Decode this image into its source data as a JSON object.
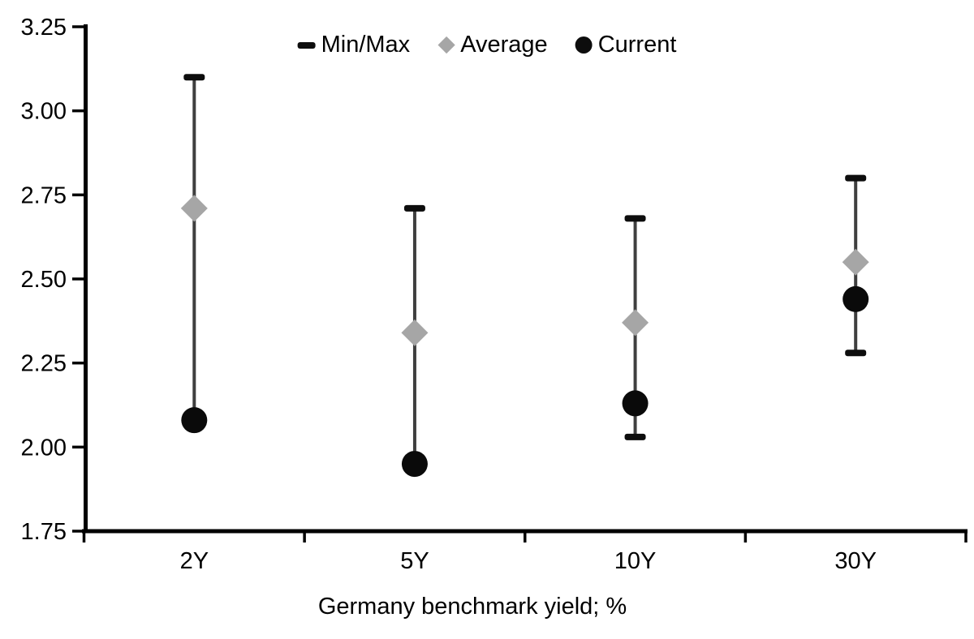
{
  "chart_data": {
    "type": "scatter",
    "title": "",
    "xlabel": "Germany benchmark yield; %",
    "ylabel": "",
    "categories": [
      "2Y",
      "5Y",
      "10Y",
      "30Y"
    ],
    "series": [
      {
        "name": "Min/Max",
        "marker": "cap-bar",
        "max": [
          3.1,
          2.71,
          2.68,
          2.8
        ],
        "min": [
          2.08,
          1.95,
          2.03,
          2.28
        ]
      },
      {
        "name": "Average",
        "marker": "diamond",
        "values": [
          2.71,
          2.34,
          2.37,
          2.55
        ]
      },
      {
        "name": "Current",
        "marker": "circle",
        "values": [
          2.08,
          1.95,
          2.13,
          2.44
        ]
      }
    ],
    "ylim": [
      1.75,
      3.25
    ],
    "ytick_step": 0.25,
    "yticks": [
      "3.25",
      "3.00",
      "2.75",
      "2.50",
      "2.25",
      "2.00",
      "1.75"
    ],
    "grid": false,
    "legend_position": "top-center",
    "colors": {
      "minmax_cap": "#0d0d0d",
      "whisker": "#3f3f3f",
      "average": "#a6a6a6",
      "current": "#0a0a0a",
      "axis": "#000000",
      "text": "#000000",
      "background": "#ffffff"
    }
  }
}
